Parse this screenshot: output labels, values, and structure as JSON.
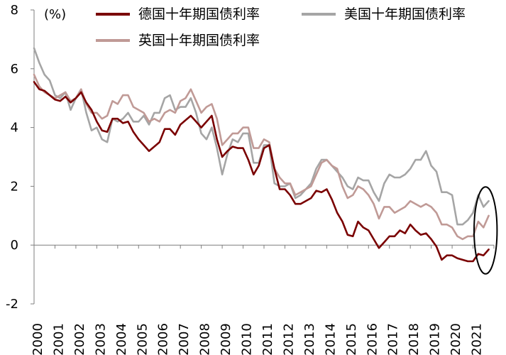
{
  "chart_data": {
    "type": "line",
    "ylabel": "(%)",
    "ylim": [
      -2,
      8
    ],
    "yticks": [
      8,
      6,
      4,
      2,
      0,
      -2
    ],
    "xlim": [
      2000,
      2022
    ],
    "xticks": [
      "2000",
      "2001",
      "2002",
      "2003",
      "2004",
      "2005",
      "2006",
      "2007",
      "2008",
      "2009",
      "2010",
      "2011",
      "2012",
      "2013",
      "2014",
      "2015",
      "2016",
      "2017",
      "2018",
      "2019",
      "2020",
      "2021"
    ],
    "grid": false,
    "legend_position": "top",
    "series": [
      {
        "name": "德国十年期国债利率",
        "color": "#7a0000",
        "x": [
          2000.0,
          2000.25,
          2000.5,
          2000.75,
          2001.0,
          2001.25,
          2001.5,
          2001.75,
          2002.0,
          2002.25,
          2002.5,
          2002.75,
          2003.0,
          2003.25,
          2003.5,
          2003.75,
          2004.0,
          2004.25,
          2004.5,
          2004.75,
          2005.0,
          2005.25,
          2005.5,
          2005.75,
          2006.0,
          2006.25,
          2006.5,
          2006.75,
          2007.0,
          2007.25,
          2007.5,
          2007.75,
          2008.0,
          2008.25,
          2008.5,
          2008.75,
          2009.0,
          2009.25,
          2009.5,
          2009.75,
          2010.0,
          2010.25,
          2010.5,
          2010.75,
          2011.0,
          2011.25,
          2011.5,
          2011.75,
          2012.0,
          2012.25,
          2012.5,
          2012.75,
          2013.0,
          2013.25,
          2013.5,
          2013.75,
          2014.0,
          2014.25,
          2014.5,
          2014.75,
          2015.0,
          2015.25,
          2015.5,
          2015.75,
          2016.0,
          2016.25,
          2016.5,
          2016.75,
          2017.0,
          2017.25,
          2017.5,
          2017.75,
          2018.0,
          2018.25,
          2018.5,
          2018.75,
          2019.0,
          2019.25,
          2019.5,
          2019.75,
          2020.0,
          2020.25,
          2020.5,
          2020.75,
          2021.0,
          2021.25,
          2021.5,
          2021.75
        ],
        "values": [
          5.55,
          5.3,
          5.25,
          5.1,
          4.95,
          4.9,
          5.05,
          4.85,
          5.0,
          5.2,
          4.85,
          4.6,
          4.2,
          3.9,
          3.85,
          4.3,
          4.3,
          4.15,
          4.2,
          3.85,
          3.6,
          3.4,
          3.2,
          3.35,
          3.5,
          3.95,
          3.95,
          3.75,
          4.1,
          4.25,
          4.4,
          4.2,
          4.0,
          4.2,
          4.4,
          3.6,
          3.0,
          3.2,
          3.35,
          3.3,
          3.3,
          2.9,
          2.4,
          2.7,
          3.3,
          3.4,
          2.6,
          1.9,
          1.9,
          1.7,
          1.4,
          1.4,
          1.5,
          1.6,
          1.85,
          1.8,
          1.9,
          1.55,
          1.1,
          0.8,
          0.35,
          0.3,
          0.8,
          0.6,
          0.5,
          0.2,
          -0.1,
          0.1,
          0.3,
          0.3,
          0.5,
          0.4,
          0.7,
          0.5,
          0.35,
          0.4,
          0.2,
          -0.05,
          -0.5,
          -0.35,
          -0.35,
          -0.45,
          -0.5,
          -0.55,
          -0.55,
          -0.3,
          -0.35,
          -0.15
        ]
      },
      {
        "name": "美国十年期国债利率",
        "color": "#a5a5a5",
        "x": [
          2000.0,
          2000.25,
          2000.5,
          2000.75,
          2001.0,
          2001.25,
          2001.5,
          2001.75,
          2002.0,
          2002.25,
          2002.5,
          2002.75,
          2003.0,
          2003.25,
          2003.5,
          2003.75,
          2004.0,
          2004.25,
          2004.5,
          2004.75,
          2005.0,
          2005.25,
          2005.5,
          2005.75,
          2006.0,
          2006.25,
          2006.5,
          2006.75,
          2007.0,
          2007.25,
          2007.5,
          2007.75,
          2008.0,
          2008.25,
          2008.5,
          2008.75,
          2009.0,
          2009.25,
          2009.5,
          2009.75,
          2010.0,
          2010.25,
          2010.5,
          2010.75,
          2011.0,
          2011.25,
          2011.5,
          2011.75,
          2012.0,
          2012.25,
          2012.5,
          2012.75,
          2013.0,
          2013.25,
          2013.5,
          2013.75,
          2014.0,
          2014.25,
          2014.5,
          2014.75,
          2015.0,
          2015.25,
          2015.5,
          2015.75,
          2016.0,
          2016.25,
          2016.5,
          2016.75,
          2017.0,
          2017.25,
          2017.5,
          2017.75,
          2018.0,
          2018.25,
          2018.5,
          2018.75,
          2019.0,
          2019.25,
          2019.5,
          2019.75,
          2020.0,
          2020.25,
          2020.5,
          2020.75,
          2021.0,
          2021.25,
          2021.5,
          2021.75
        ],
        "values": [
          6.7,
          6.2,
          5.8,
          5.6,
          5.1,
          5.0,
          5.2,
          4.6,
          5.0,
          5.3,
          4.5,
          3.9,
          4.0,
          3.6,
          3.5,
          4.3,
          4.2,
          4.3,
          4.5,
          4.2,
          4.2,
          4.4,
          4.1,
          4.5,
          4.5,
          5.0,
          5.1,
          4.6,
          4.7,
          4.7,
          5.0,
          4.5,
          3.8,
          3.6,
          4.0,
          3.3,
          2.4,
          3.1,
          3.6,
          3.5,
          3.8,
          3.8,
          2.8,
          2.8,
          3.4,
          3.4,
          2.1,
          2.0,
          2.0,
          2.1,
          1.6,
          1.7,
          1.9,
          2.1,
          2.6,
          2.9,
          2.9,
          2.7,
          2.5,
          2.3,
          2.0,
          1.9,
          2.3,
          2.2,
          2.2,
          1.8,
          1.5,
          2.1,
          2.4,
          2.3,
          2.3,
          2.4,
          2.6,
          2.9,
          2.9,
          3.2,
          2.7,
          2.5,
          1.8,
          1.8,
          1.7,
          0.7,
          0.7,
          0.85,
          1.1,
          1.7,
          1.3,
          1.5
        ]
      },
      {
        "name": "英国十年期国债利率",
        "color": "#c09a96",
        "x": [
          2000.0,
          2000.25,
          2000.5,
          2000.75,
          2001.0,
          2001.25,
          2001.5,
          2001.75,
          2002.0,
          2002.25,
          2002.5,
          2002.75,
          2003.0,
          2003.25,
          2003.5,
          2003.75,
          2004.0,
          2004.25,
          2004.5,
          2004.75,
          2005.0,
          2005.25,
          2005.5,
          2005.75,
          2006.0,
          2006.25,
          2006.5,
          2006.75,
          2007.0,
          2007.25,
          2007.5,
          2007.75,
          2008.0,
          2008.25,
          2008.5,
          2008.75,
          2009.0,
          2009.25,
          2009.5,
          2009.75,
          2010.0,
          2010.25,
          2010.5,
          2010.75,
          2011.0,
          2011.25,
          2011.5,
          2011.75,
          2012.0,
          2012.25,
          2012.5,
          2012.75,
          2013.0,
          2013.25,
          2013.5,
          2013.75,
          2014.0,
          2014.25,
          2014.5,
          2014.75,
          2015.0,
          2015.25,
          2015.5,
          2015.75,
          2016.0,
          2016.25,
          2016.5,
          2016.75,
          2017.0,
          2017.25,
          2017.5,
          2017.75,
          2018.0,
          2018.25,
          2018.5,
          2018.75,
          2019.0,
          2019.25,
          2019.5,
          2019.75,
          2020.0,
          2020.25,
          2020.5,
          2020.75,
          2021.0,
          2021.25,
          2021.5,
          2021.75
        ],
        "values": [
          5.8,
          5.4,
          5.2,
          5.1,
          5.0,
          5.1,
          5.2,
          4.9,
          5.0,
          5.3,
          4.8,
          4.5,
          4.5,
          4.3,
          4.4,
          4.9,
          4.8,
          5.1,
          5.1,
          4.7,
          4.6,
          4.5,
          4.2,
          4.3,
          4.2,
          4.5,
          4.6,
          4.5,
          4.9,
          5.0,
          5.3,
          4.9,
          4.5,
          4.7,
          4.8,
          4.3,
          3.4,
          3.6,
          3.8,
          3.8,
          4.0,
          4.0,
          3.3,
          3.3,
          3.6,
          3.5,
          2.6,
          2.3,
          2.1,
          2.1,
          1.7,
          1.8,
          1.9,
          2.0,
          2.4,
          2.8,
          2.9,
          2.7,
          2.6,
          2.0,
          1.6,
          1.7,
          2.0,
          1.9,
          1.7,
          1.4,
          0.9,
          1.3,
          1.3,
          1.1,
          1.2,
          1.3,
          1.5,
          1.4,
          1.3,
          1.4,
          1.3,
          1.1,
          0.7,
          0.7,
          0.6,
          0.3,
          0.2,
          0.3,
          0.3,
          0.8,
          0.6,
          1.0
        ]
      }
    ],
    "annotations": [
      {
        "type": "ellipse",
        "x_center": 2021.6,
        "y_center": 0.5,
        "x_radius": 0.55,
        "y_radius": 1.48
      }
    ]
  }
}
